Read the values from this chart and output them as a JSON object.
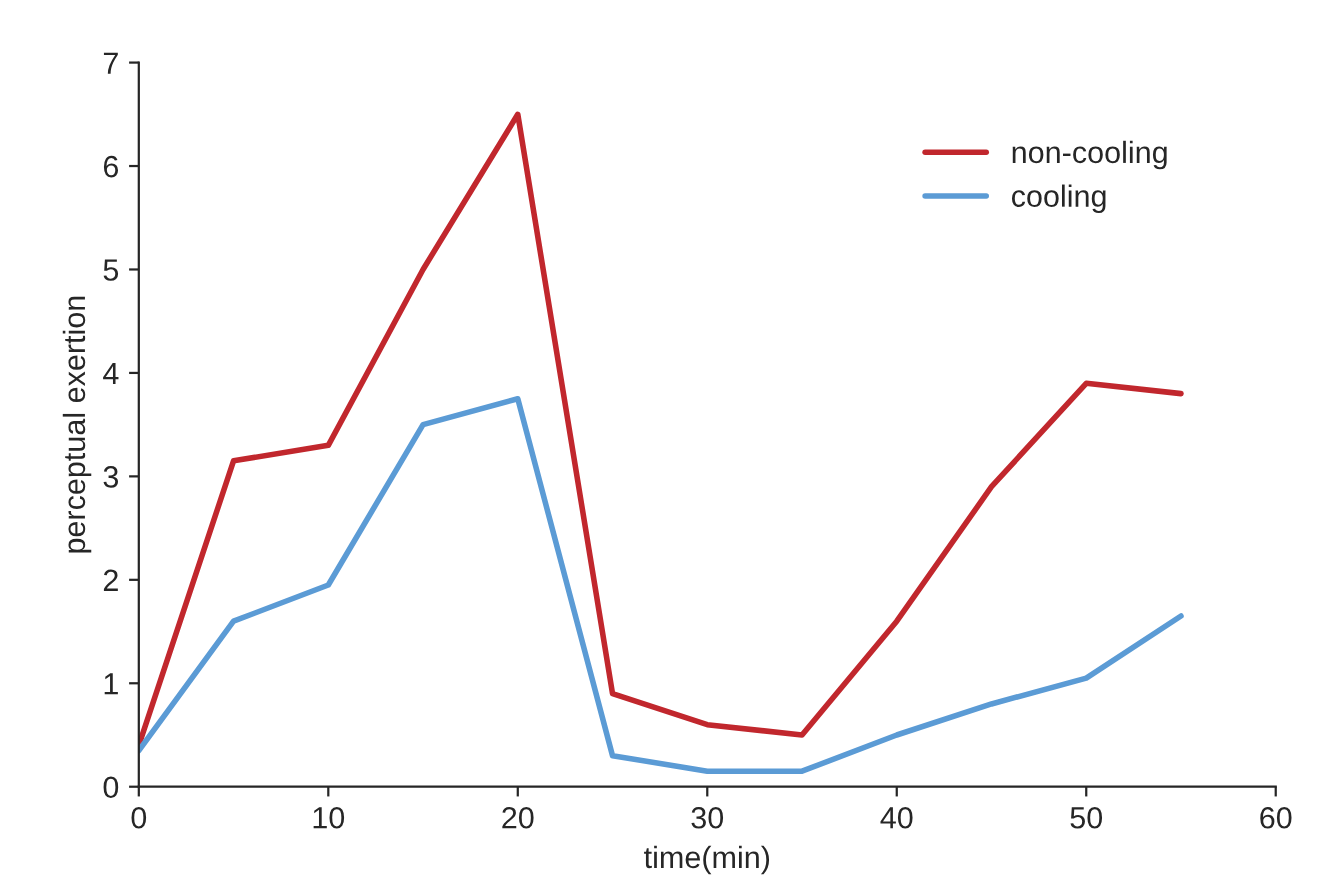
{
  "chart_data": {
    "type": "line",
    "xlabel": "time(min)",
    "ylabel": "perceptual exertion",
    "x": [
      0,
      5,
      10,
      15,
      20,
      25,
      30,
      35,
      40,
      45,
      50,
      55
    ],
    "series": [
      {
        "name": "non-cooling",
        "color": "#c1272d",
        "values": [
          0.4,
          3.15,
          3.3,
          5.0,
          6.5,
          0.9,
          0.6,
          0.5,
          1.6,
          2.9,
          3.9,
          3.8
        ]
      },
      {
        "name": "cooling",
        "color": "#5b9bd5",
        "values": [
          0.35,
          1.6,
          1.95,
          3.5,
          3.75,
          0.3,
          0.15,
          0.15,
          0.5,
          0.8,
          1.05,
          1.65
        ]
      }
    ],
    "xlim": [
      0,
      60
    ],
    "xticks": [
      0,
      10,
      20,
      30,
      40,
      50,
      60
    ],
    "ylim": [
      0,
      7
    ],
    "yticks": [
      0,
      1,
      2,
      3,
      4,
      5,
      6,
      7
    ],
    "grid": false,
    "legend": "top right",
    "marker": "none",
    "line_style": "solid"
  }
}
